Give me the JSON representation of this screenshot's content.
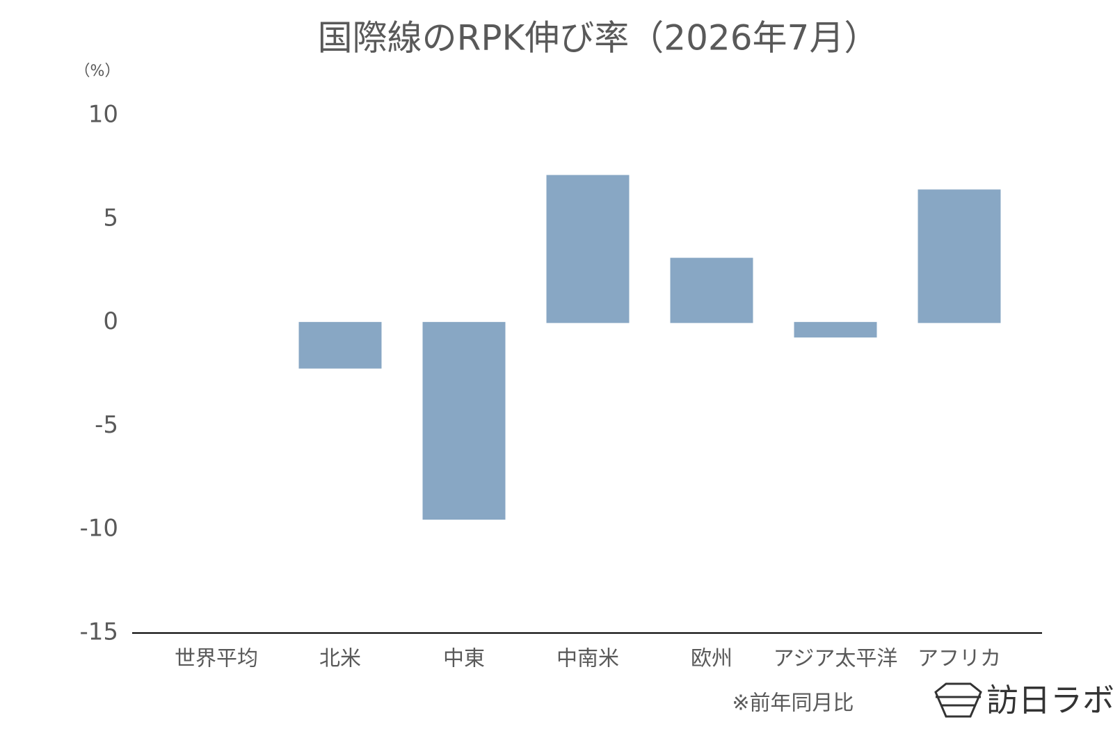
{
  "chart_data": {
    "type": "bar",
    "title": "国際線のRPK伸び率（2026年7月）",
    "y_unit": "（%）",
    "categories": [
      "世界平均",
      "北米",
      "中東",
      "中南米",
      "欧州",
      "アジア太平洋",
      "アフリカ"
    ],
    "values": [
      0,
      -2.2,
      -9.5,
      7.1,
      3.1,
      -0.7,
      6.4
    ],
    "color": "#88a7c4",
    "ylim": [
      -15,
      10
    ],
    "yticks": [
      10,
      5,
      0,
      -5,
      -10,
      -15
    ],
    "grid": false,
    "note": "※前年同月比",
    "logo": "訪日ラボ"
  }
}
